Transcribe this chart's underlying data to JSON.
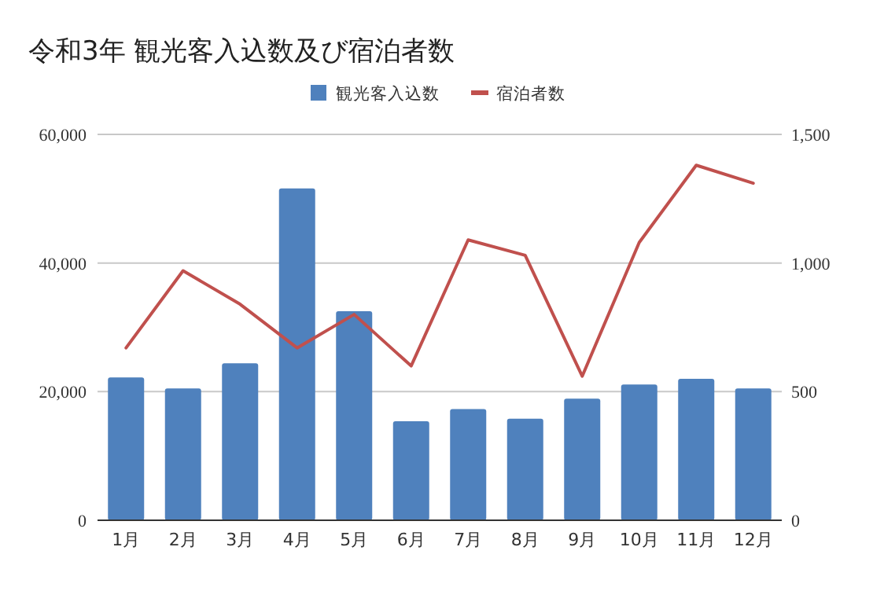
{
  "chart_data": {
    "type": "bar",
    "title": "令和3年  観光客入込数及び宿泊者数",
    "categories": [
      "1月",
      "2月",
      "3月",
      "4月",
      "5月",
      "6月",
      "7月",
      "8月",
      "9月",
      "10月",
      "11月",
      "12月"
    ],
    "series": [
      {
        "name": "観光客入込数",
        "color": "#4f81bd",
        "values": [
          22200,
          20500,
          24400,
          51600,
          32500,
          15400,
          17300,
          15800,
          18900,
          21100,
          22000,
          20500
        ]
      },
      {
        "name": "宿泊者数",
        "type": "line",
        "axis": "y2",
        "color": "#c0504d",
        "values": [
          670,
          970,
          840,
          670,
          800,
          600,
          1090,
          1030,
          560,
          1080,
          1380,
          1310
        ]
      }
    ],
    "ylim": [
      0,
      60000
    ],
    "yticks": [
      0,
      {
        "value": 20000,
        "label": "20,000"
      },
      {
        "value": 40000,
        "label": "40,000"
      },
      {
        "value": 60000,
        "label": "60,000"
      }
    ],
    "y2lim": [
      0,
      1500
    ],
    "y2ticks": [
      0,
      500,
      {
        "value": 1000,
        "label": "1,000"
      },
      {
        "value": 1500,
        "label": "1,500"
      }
    ],
    "grid": "y",
    "legend": "top"
  }
}
